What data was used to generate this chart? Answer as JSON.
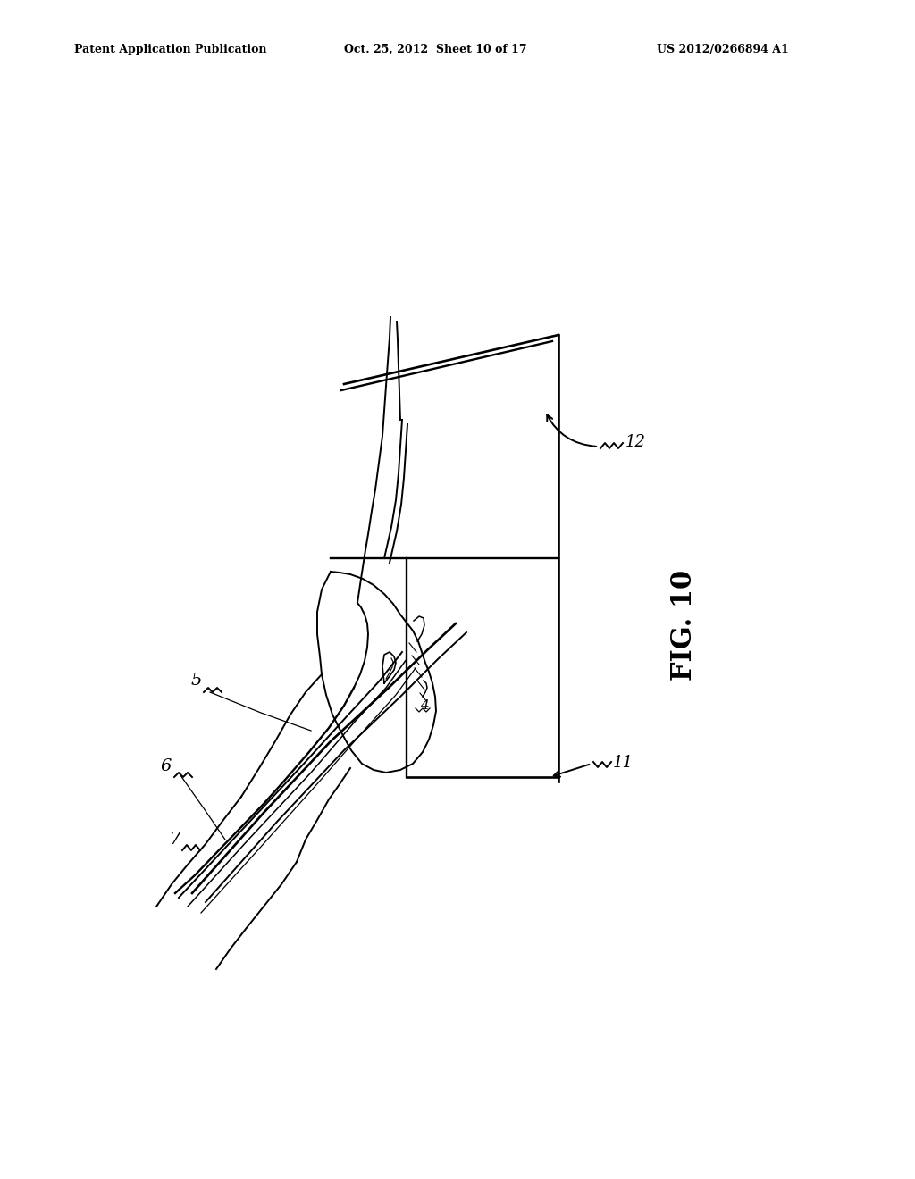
{
  "background_color": "#ffffff",
  "text_color": "#000000",
  "header_left": "Patent Application Publication",
  "header_center": "Oct. 25, 2012  Sheet 10 of 17",
  "header_right": "US 2012/0266894 A1",
  "fig_label": "FIG. 10",
  "line_color": "#000000",
  "line_width": 1.4
}
